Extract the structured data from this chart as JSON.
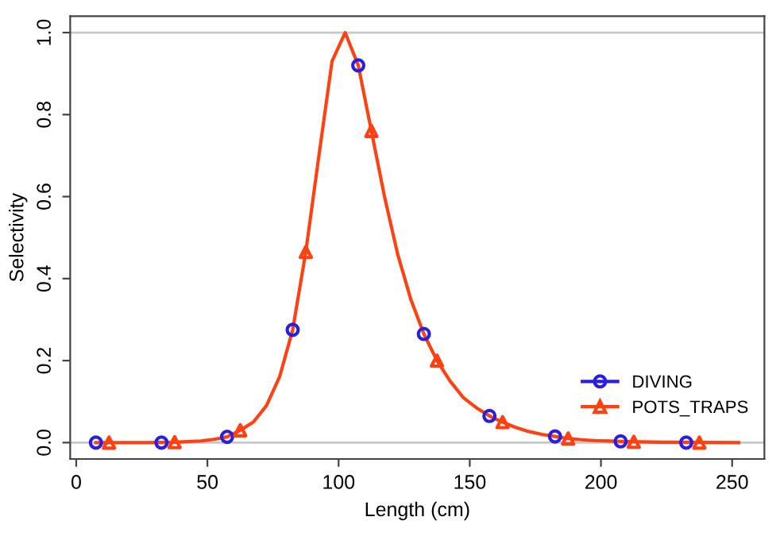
{
  "chart_data": {
    "type": "line",
    "xlabel": "Length (cm)",
    "ylabel": "Selectivity",
    "xlim": [
      -2.3,
      262.3
    ],
    "ylim": [
      -0.04,
      1.04
    ],
    "xticks": [
      0,
      50,
      100,
      150,
      200,
      250
    ],
    "yticks": [
      {
        "value": 0,
        "label": "0.0"
      },
      0.2,
      0.4,
      0.6,
      0.8,
      {
        "value": 1,
        "label": "1.0"
      }
    ],
    "grid": false,
    "legend": "bottom right",
    "line_style": "solid",
    "ref_lines": [
      {
        "axis": "y",
        "value": 0,
        "color": "#c8c8c8"
      },
      {
        "axis": "y",
        "value": 1,
        "color": "#c8c8c8"
      }
    ],
    "series": [
      {
        "name": "DIVING",
        "type": "scatter",
        "color": "#2a1fe0",
        "marker": "circle",
        "x": [
          7.5,
          32.5,
          57.5,
          82.5,
          107.5,
          132.5,
          157.5,
          182.5,
          207.5,
          232.5
        ],
        "values": [
          0,
          0,
          0.014,
          0.275,
          0.92,
          0.265,
          0.065,
          0.015,
          0.003,
          0
        ]
      },
      {
        "name": "POTS_TRAPS",
        "type": "scatter",
        "color": "#ff4010",
        "marker": "triangle",
        "x": [
          12.5,
          37.5,
          62.5,
          87.5,
          112.5,
          137.5,
          162.5,
          187.5,
          212.5,
          237.5
        ],
        "values": [
          0,
          0.001,
          0.03,
          0.465,
          0.76,
          0.2,
          0.05,
          0.01,
          0.002,
          0
        ]
      },
      {
        "color": "#ff4010",
        "marker": "none",
        "x": [
          7.5,
          17.5,
          27.5,
          37.5,
          47.5,
          52.5,
          57.5,
          62.5,
          67.5,
          72.5,
          77.5,
          82.5,
          87.5,
          92.5,
          97.5,
          102.5,
          107.5,
          112.5,
          117.5,
          122.5,
          127.5,
          132.5,
          137.5,
          142.5,
          147.5,
          152.5,
          157.5,
          162.5,
          167.5,
          172.5,
          177.5,
          182.5,
          187.5,
          192.5,
          197.5,
          207.5,
          222.5,
          252.5
        ],
        "values": [
          0,
          0,
          0,
          0.001,
          0.004,
          0.008,
          0.014,
          0.03,
          0.05,
          0.09,
          0.16,
          0.275,
          0.465,
          0.7,
          0.93,
          1.0,
          0.92,
          0.76,
          0.6,
          0.46,
          0.35,
          0.265,
          0.2,
          0.15,
          0.11,
          0.085,
          0.065,
          0.05,
          0.037,
          0.027,
          0.02,
          0.015,
          0.01,
          0.007,
          0.005,
          0.003,
          0.001,
          0
        ]
      }
    ]
  }
}
